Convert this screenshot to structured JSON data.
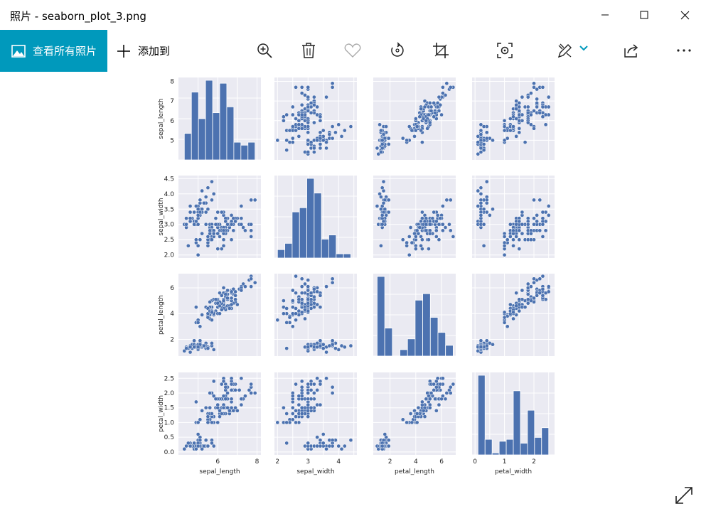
{
  "window": {
    "title": "照片 - seaborn_plot_3.png"
  },
  "toolbar": {
    "view_all_label": "查看所有照片",
    "add_to_label": "添加到",
    "icons": [
      "zoom-in-icon",
      "delete-icon",
      "favorite-heart-icon",
      "rotate-icon",
      "crop-icon",
      "visual-search-icon",
      "edit-draw-icon",
      "share-icon",
      "more-icon"
    ],
    "accent": "#0099bc"
  },
  "chart_data": {
    "type": "scatter",
    "title": "",
    "style": "seaborn pairplot",
    "background": "#eaeaf2",
    "mark_color": "#4c72b0",
    "variables": [
      "sepal_length",
      "sepal_width",
      "petal_length",
      "petal_width"
    ],
    "axis_ticks": {
      "sepal_length": [
        5,
        6,
        7,
        8
      ],
      "sepal_width": [
        2.0,
        2.5,
        3.0,
        3.5,
        4.0,
        4.5
      ],
      "petal_length": [
        2,
        4,
        6
      ],
      "petal_width": [
        0.0,
        0.5,
        1.0,
        1.5,
        2.0,
        2.5
      ]
    },
    "y_tick_labels": {
      "sepal_length": [
        "8",
        "7",
        "6",
        "5"
      ],
      "sepal_width": [
        "4.5",
        "4.0",
        "3.5",
        "3.0",
        "2.5",
        "2.0"
      ],
      "petal_length": [
        "6",
        "4",
        "2"
      ],
      "petal_width": [
        "2.5",
        "2.0",
        "1.5",
        "1.0",
        "0.5",
        "0.0"
      ]
    },
    "x_tick_labels": {
      "sepal_length": [
        "6",
        "8"
      ],
      "sepal_width": [
        "2",
        "3",
        "4"
      ],
      "petal_length": [
        "2",
        "4",
        "6"
      ],
      "petal_width": [
        "0",
        "1",
        "2"
      ]
    },
    "ranges": {
      "sepal_length": [
        4.0,
        8.2
      ],
      "sepal_width": [
        1.9,
        4.6
      ],
      "petal_length": [
        0.7,
        7.1
      ],
      "petal_width": [
        -0.1,
        2.7
      ]
    },
    "hist_bins": {
      "sepal_length": {
        "edges": [
          4.3,
          4.66,
          5.02,
          5.38,
          5.74,
          6.1,
          6.46,
          6.82,
          7.18,
          7.54,
          7.9
        ],
        "counts": [
          9,
          23,
          14,
          27,
          16,
          26,
          18,
          6,
          5,
          6
        ]
      },
      "sepal_width": {
        "edges": [
          2.0,
          2.24,
          2.48,
          2.72,
          2.96,
          3.2,
          3.44,
          3.68,
          3.92,
          4.16,
          4.4
        ],
        "counts": [
          4,
          7,
          22,
          24,
          38,
          31,
          9,
          11,
          2,
          2
        ]
      },
      "petal_length": {
        "edges": [
          1.0,
          1.59,
          2.18,
          2.77,
          3.36,
          3.95,
          4.54,
          5.13,
          5.72,
          6.31,
          6.9
        ],
        "counts": [
          37,
          13,
          0,
          3,
          8,
          26,
          29,
          18,
          11,
          5
        ]
      },
      "petal_width": {
        "edges": [
          0.1,
          0.34,
          0.58,
          0.82,
          1.06,
          1.3,
          1.54,
          1.78,
          2.02,
          2.26,
          2.5
        ],
        "counts": [
          41,
          8,
          1,
          7,
          8,
          33,
          6,
          23,
          9,
          14
        ]
      }
    },
    "samples": [
      [
        5.1,
        3.5,
        1.4,
        0.2
      ],
      [
        4.9,
        3.0,
        1.4,
        0.2
      ],
      [
        4.7,
        3.2,
        1.3,
        0.2
      ],
      [
        4.6,
        3.1,
        1.5,
        0.2
      ],
      [
        5.0,
        3.6,
        1.4,
        0.2
      ],
      [
        5.4,
        3.9,
        1.7,
        0.4
      ],
      [
        4.6,
        3.4,
        1.4,
        0.3
      ],
      [
        5.0,
        3.4,
        1.5,
        0.2
      ],
      [
        4.4,
        2.9,
        1.4,
        0.2
      ],
      [
        4.9,
        3.1,
        1.5,
        0.1
      ],
      [
        5.4,
        3.7,
        1.5,
        0.2
      ],
      [
        4.8,
        3.4,
        1.6,
        0.2
      ],
      [
        4.8,
        3.0,
        1.4,
        0.1
      ],
      [
        4.3,
        3.0,
        1.1,
        0.1
      ],
      [
        5.8,
        4.0,
        1.2,
        0.2
      ],
      [
        5.7,
        4.4,
        1.5,
        0.4
      ],
      [
        5.4,
        3.9,
        1.3,
        0.4
      ],
      [
        5.1,
        3.5,
        1.4,
        0.3
      ],
      [
        5.7,
        3.8,
        1.7,
        0.3
      ],
      [
        5.1,
        3.8,
        1.5,
        0.3
      ],
      [
        5.4,
        3.4,
        1.7,
        0.2
      ],
      [
        5.1,
        3.7,
        1.5,
        0.4
      ],
      [
        4.6,
        3.6,
        1.0,
        0.2
      ],
      [
        5.1,
        3.3,
        1.7,
        0.5
      ],
      [
        4.8,
        3.4,
        1.9,
        0.2
      ],
      [
        5.0,
        3.0,
        1.6,
        0.2
      ],
      [
        5.0,
        3.4,
        1.6,
        0.4
      ],
      [
        5.2,
        3.5,
        1.5,
        0.2
      ],
      [
        5.2,
        3.4,
        1.4,
        0.2
      ],
      [
        4.7,
        3.2,
        1.6,
        0.2
      ],
      [
        4.8,
        3.1,
        1.6,
        0.2
      ],
      [
        5.4,
        3.4,
        1.5,
        0.4
      ],
      [
        5.2,
        4.1,
        1.5,
        0.1
      ],
      [
        5.5,
        4.2,
        1.4,
        0.2
      ],
      [
        4.9,
        3.1,
        1.5,
        0.2
      ],
      [
        5.0,
        3.2,
        1.2,
        0.2
      ],
      [
        5.5,
        3.5,
        1.3,
        0.2
      ],
      [
        4.9,
        3.6,
        1.4,
        0.1
      ],
      [
        4.4,
        3.0,
        1.3,
        0.2
      ],
      [
        5.1,
        3.4,
        1.5,
        0.2
      ],
      [
        5.0,
        3.5,
        1.3,
        0.3
      ],
      [
        4.5,
        2.3,
        1.3,
        0.3
      ],
      [
        4.4,
        3.2,
        1.3,
        0.2
      ],
      [
        5.0,
        3.5,
        1.6,
        0.6
      ],
      [
        5.1,
        3.8,
        1.9,
        0.4
      ],
      [
        4.8,
        3.0,
        1.4,
        0.3
      ],
      [
        5.1,
        3.8,
        1.6,
        0.2
      ],
      [
        4.6,
        3.2,
        1.4,
        0.2
      ],
      [
        5.3,
        3.7,
        1.5,
        0.2
      ],
      [
        5.0,
        3.3,
        1.4,
        0.2
      ],
      [
        7.0,
        3.2,
        4.7,
        1.4
      ],
      [
        6.4,
        3.2,
        4.5,
        1.5
      ],
      [
        6.9,
        3.1,
        4.9,
        1.5
      ],
      [
        5.5,
        2.3,
        4.0,
        1.3
      ],
      [
        6.5,
        2.8,
        4.6,
        1.5
      ],
      [
        5.7,
        2.8,
        4.5,
        1.3
      ],
      [
        6.3,
        3.3,
        4.7,
        1.6
      ],
      [
        4.9,
        2.4,
        3.3,
        1.0
      ],
      [
        6.6,
        2.9,
        4.6,
        1.3
      ],
      [
        5.2,
        2.7,
        3.9,
        1.4
      ],
      [
        5.0,
        2.0,
        3.5,
        1.0
      ],
      [
        5.9,
        3.0,
        4.2,
        1.5
      ],
      [
        6.0,
        2.2,
        4.0,
        1.0
      ],
      [
        6.1,
        2.9,
        4.7,
        1.4
      ],
      [
        5.6,
        2.9,
        3.6,
        1.3
      ],
      [
        6.7,
        3.1,
        4.4,
        1.4
      ],
      [
        5.6,
        3.0,
        4.5,
        1.5
      ],
      [
        5.8,
        2.7,
        4.1,
        1.0
      ],
      [
        6.2,
        2.2,
        4.5,
        1.5
      ],
      [
        5.6,
        2.5,
        3.9,
        1.1
      ],
      [
        5.9,
        3.2,
        4.8,
        1.8
      ],
      [
        6.1,
        2.8,
        4.0,
        1.3
      ],
      [
        6.3,
        2.5,
        4.9,
        1.5
      ],
      [
        6.1,
        2.8,
        4.7,
        1.2
      ],
      [
        6.4,
        2.9,
        4.3,
        1.3
      ],
      [
        6.6,
        3.0,
        4.4,
        1.4
      ],
      [
        6.8,
        2.8,
        4.8,
        1.4
      ],
      [
        6.7,
        3.0,
        5.0,
        1.7
      ],
      [
        6.0,
        2.9,
        4.5,
        1.5
      ],
      [
        5.7,
        2.6,
        3.5,
        1.0
      ],
      [
        5.5,
        2.4,
        3.8,
        1.1
      ],
      [
        5.5,
        2.4,
        3.7,
        1.0
      ],
      [
        5.8,
        2.7,
        3.9,
        1.2
      ],
      [
        6.0,
        2.7,
        5.1,
        1.6
      ],
      [
        5.4,
        3.0,
        4.5,
        1.5
      ],
      [
        6.0,
        3.4,
        4.5,
        1.6
      ],
      [
        6.7,
        3.1,
        4.7,
        1.5
      ],
      [
        6.3,
        2.3,
        4.4,
        1.3
      ],
      [
        5.6,
        3.0,
        4.1,
        1.3
      ],
      [
        5.5,
        2.5,
        4.0,
        1.3
      ],
      [
        5.5,
        2.6,
        4.4,
        1.2
      ],
      [
        6.1,
        3.0,
        4.6,
        1.4
      ],
      [
        5.8,
        2.6,
        4.0,
        1.2
      ],
      [
        5.0,
        2.3,
        3.3,
        1.0
      ],
      [
        5.6,
        2.7,
        4.2,
        1.3
      ],
      [
        5.7,
        3.0,
        4.2,
        1.2
      ],
      [
        5.7,
        2.9,
        4.2,
        1.3
      ],
      [
        6.2,
        2.9,
        4.3,
        1.3
      ],
      [
        5.1,
        2.5,
        3.0,
        1.1
      ],
      [
        5.7,
        2.8,
        4.1,
        1.3
      ],
      [
        6.3,
        3.3,
        6.0,
        2.5
      ],
      [
        5.8,
        2.7,
        5.1,
        1.9
      ],
      [
        7.1,
        3.0,
        5.9,
        2.1
      ],
      [
        6.3,
        2.9,
        5.6,
        1.8
      ],
      [
        6.5,
        3.0,
        5.8,
        2.2
      ],
      [
        7.6,
        3.0,
        6.6,
        2.1
      ],
      [
        4.9,
        2.5,
        4.5,
        1.7
      ],
      [
        7.3,
        2.9,
        6.3,
        1.8
      ],
      [
        6.7,
        2.5,
        5.8,
        1.8
      ],
      [
        7.2,
        3.6,
        6.1,
        2.5
      ],
      [
        6.5,
        3.2,
        5.1,
        2.0
      ],
      [
        6.4,
        2.7,
        5.3,
        1.9
      ],
      [
        6.8,
        3.0,
        5.5,
        2.1
      ],
      [
        5.7,
        2.5,
        5.0,
        2.0
      ],
      [
        5.8,
        2.8,
        5.1,
        2.4
      ],
      [
        6.4,
        3.2,
        5.3,
        2.3
      ],
      [
        6.5,
        3.0,
        5.5,
        1.8
      ],
      [
        7.7,
        3.8,
        6.7,
        2.2
      ],
      [
        7.7,
        2.6,
        6.9,
        2.3
      ],
      [
        6.0,
        2.2,
        5.0,
        1.5
      ],
      [
        6.9,
        3.2,
        5.7,
        2.3
      ],
      [
        5.6,
        2.8,
        4.9,
        2.0
      ],
      [
        7.7,
        2.8,
        6.7,
        2.0
      ],
      [
        6.3,
        2.7,
        4.9,
        1.8
      ],
      [
        6.7,
        3.3,
        5.7,
        2.1
      ],
      [
        7.2,
        3.2,
        6.0,
        1.8
      ],
      [
        6.2,
        2.8,
        4.8,
        1.8
      ],
      [
        6.1,
        3.0,
        4.9,
        1.8
      ],
      [
        6.4,
        2.8,
        5.6,
        2.1
      ],
      [
        7.2,
        3.0,
        5.8,
        1.6
      ],
      [
        7.4,
        2.8,
        6.1,
        1.9
      ],
      [
        7.9,
        3.8,
        6.4,
        2.0
      ],
      [
        6.4,
        2.8,
        5.6,
        2.2
      ],
      [
        6.3,
        2.8,
        5.1,
        1.5
      ],
      [
        6.1,
        2.6,
        5.6,
        1.4
      ],
      [
        7.7,
        3.0,
        6.1,
        2.3
      ],
      [
        6.3,
        3.4,
        5.6,
        2.4
      ],
      [
        6.4,
        3.1,
        5.5,
        1.8
      ],
      [
        6.0,
        3.0,
        4.8,
        1.8
      ],
      [
        6.9,
        3.1,
        5.4,
        2.1
      ],
      [
        6.7,
        3.1,
        5.6,
        2.4
      ],
      [
        6.9,
        3.1,
        5.1,
        2.3
      ],
      [
        5.8,
        2.7,
        5.1,
        1.9
      ],
      [
        6.8,
        3.2,
        5.9,
        2.3
      ],
      [
        6.7,
        3.3,
        5.7,
        2.5
      ],
      [
        6.7,
        3.0,
        5.2,
        2.3
      ],
      [
        6.3,
        2.5,
        5.0,
        1.9
      ],
      [
        6.5,
        3.0,
        5.2,
        2.0
      ],
      [
        6.2,
        3.4,
        5.4,
        2.3
      ],
      [
        5.9,
        3.0,
        5.1,
        1.8
      ]
    ]
  }
}
